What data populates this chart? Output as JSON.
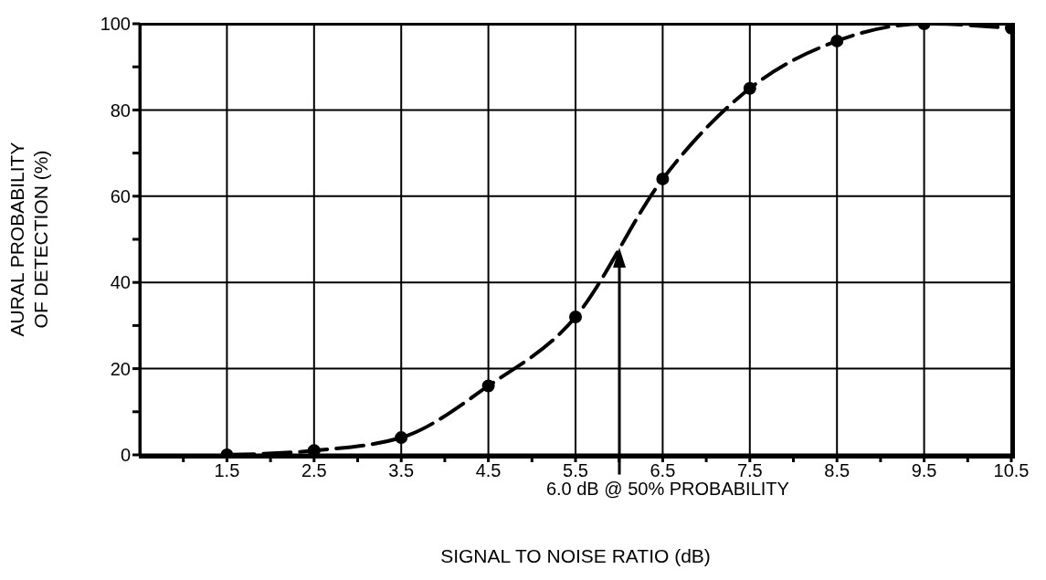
{
  "chart_data": {
    "type": "line",
    "xlabel": "SIGNAL TO NOISE RATIO (dB)",
    "ylabel": "AURAL PROBABILITY\nOF DETECTION (%)",
    "x": [
      1.5,
      2.5,
      3.5,
      4.5,
      5.5,
      6.5,
      7.5,
      8.5,
      9.5,
      10.5
    ],
    "series": [
      {
        "color": "#000000",
        "values": [
          0,
          1,
          4,
          16,
          32,
          64,
          85,
          96,
          100,
          99
        ]
      }
    ],
    "xlim": [
      0.5,
      10.5
    ],
    "xticks": [
      {
        "value": 1,
        "label": null
      },
      1.5,
      {
        "value": 2,
        "label": null
      },
      2.5,
      {
        "value": 3,
        "label": null
      },
      3.5,
      {
        "value": 4,
        "label": null
      },
      4.5,
      {
        "value": 5,
        "label": null
      },
      5.5,
      {
        "value": 6,
        "label": null
      },
      6.5,
      {
        "value": 7,
        "label": null
      },
      7.5,
      {
        "value": 8,
        "label": null
      },
      8.5,
      {
        "value": 9,
        "label": null
      },
      9.5,
      {
        "value": 10,
        "label": null
      },
      10.5
    ],
    "ylim": [
      0,
      100
    ],
    "yticks": [
      0,
      {
        "value": 10,
        "label": null
      },
      20,
      {
        "value": 30,
        "label": null
      },
      40,
      {
        "value": 50,
        "label": null
      },
      60,
      {
        "value": 70,
        "label": null
      },
      80,
      {
        "value": 90,
        "label": null
      },
      100
    ],
    "grid": true,
    "marker": "circle",
    "line_style": "dashed",
    "ref_lines": [
      {
        "axis": "x",
        "value": 6.0,
        "label": "6.0 dB @ 50% PROBABILITY",
        "color": "#000000"
      }
    ]
  }
}
